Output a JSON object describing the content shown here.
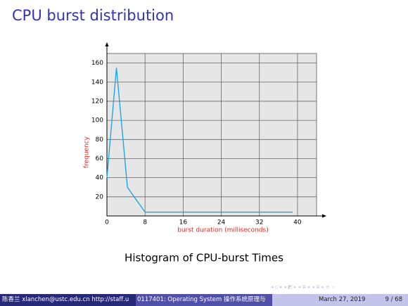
{
  "slide": {
    "title": "CPU burst distribution",
    "caption": "Histogram of CPU-burst Times",
    "footer": {
      "author": "陈香兰 xlanchen@ustc.edu.cn http://staff.u",
      "course": "0117401: Operating System 操作系统原理与",
      "date": "March 27, 2019",
      "page": "9 / 68"
    }
  },
  "chart_data": {
    "type": "line",
    "xlabel": "burst duration (milliseconds)",
    "ylabel": "frequency",
    "x": [
      0,
      2,
      4.3,
      8,
      39
    ],
    "series": [
      {
        "color": "#1ea6e6",
        "values": [
          40,
          155,
          30,
          4,
          4
        ]
      }
    ],
    "xlim": [
      0,
      44
    ],
    "ylim": [
      0,
      170
    ],
    "xticks": [
      0,
      8,
      16,
      24,
      32,
      40
    ],
    "yticks": [
      20,
      40,
      60,
      80,
      100,
      120,
      140,
      160
    ],
    "grid": true
  }
}
